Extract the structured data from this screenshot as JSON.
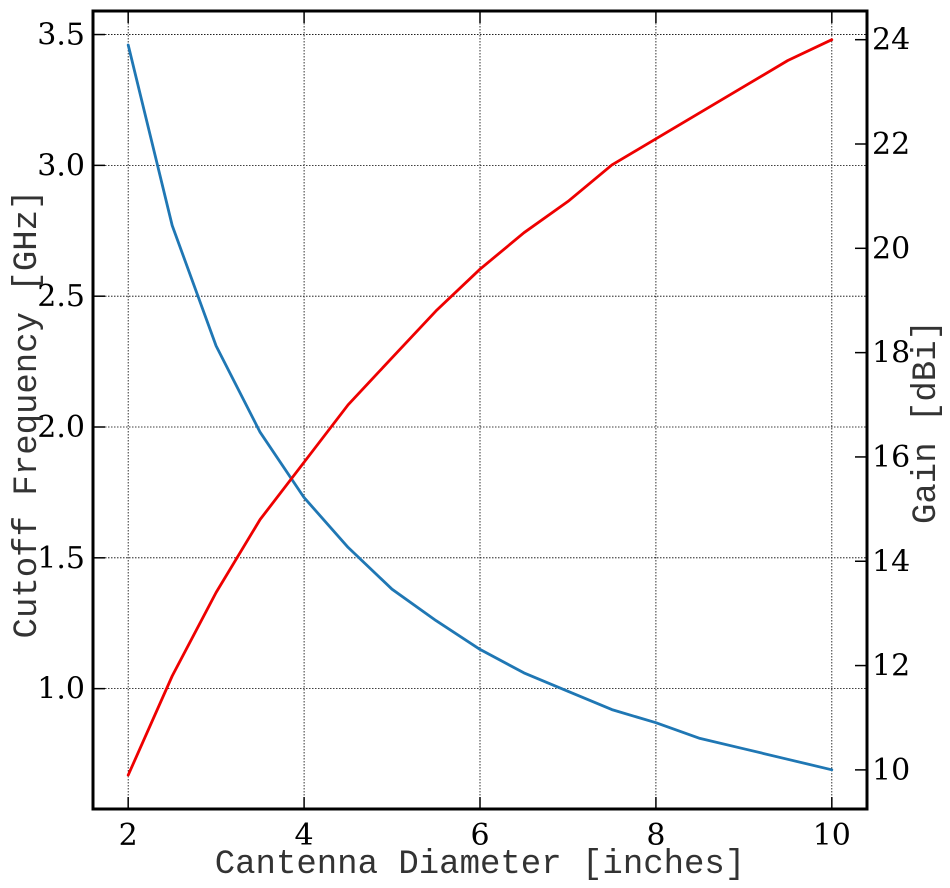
{
  "chart_data": {
    "type": "line",
    "xlabel": "Cantenna Diameter [inches]",
    "ylabel": "Cutoff Frequency [GHz]",
    "y2label": "Gain [dBi]",
    "xlim": [
      1.6,
      10.4
    ],
    "ylim": [
      0.54,
      3.59
    ],
    "y2lim": [
      9.25,
      24.55
    ],
    "x_ticks": [
      2,
      4,
      6,
      8,
      10
    ],
    "x_tick_labels": [
      "2",
      "4",
      "6",
      "8",
      "10"
    ],
    "y_ticks": [
      1.0,
      1.5,
      2.0,
      2.5,
      3.0,
      3.5
    ],
    "y_tick_labels": [
      "1.0",
      "1.5",
      "2.0",
      "2.5",
      "3.0",
      "3.5"
    ],
    "y2_ticks": [
      10,
      12,
      14,
      16,
      18,
      20,
      22,
      24
    ],
    "y2_tick_labels": [
      "10",
      "12",
      "14",
      "16",
      "18",
      "20",
      "22",
      "24"
    ],
    "grid": true,
    "series": [
      {
        "axis": "left",
        "color": "#1f77b4",
        "x": [
          2.0,
          2.5,
          3.0,
          3.5,
          4.0,
          4.5,
          5.0,
          5.5,
          6.0,
          6.5,
          7.0,
          7.5,
          8.0,
          8.5,
          9.0,
          9.5,
          10.0
        ],
        "y": [
          3.46,
          2.77,
          2.31,
          1.98,
          1.73,
          1.54,
          1.38,
          1.26,
          1.15,
          1.06,
          0.99,
          0.92,
          0.87,
          0.81,
          0.77,
          0.73,
          0.69
        ]
      },
      {
        "axis": "right",
        "color": "#ee0000",
        "x": [
          2.0,
          2.5,
          3.0,
          3.5,
          4.0,
          4.5,
          5.0,
          5.5,
          6.0,
          6.5,
          7.0,
          7.5,
          8.0,
          8.5,
          9.0,
          9.5,
          10.0
        ],
        "y": [
          9.9,
          11.8,
          13.4,
          14.8,
          15.9,
          17.0,
          17.9,
          18.8,
          19.6,
          20.3,
          20.9,
          21.6,
          22.1,
          22.6,
          23.1,
          23.6,
          24.0
        ]
      }
    ]
  }
}
